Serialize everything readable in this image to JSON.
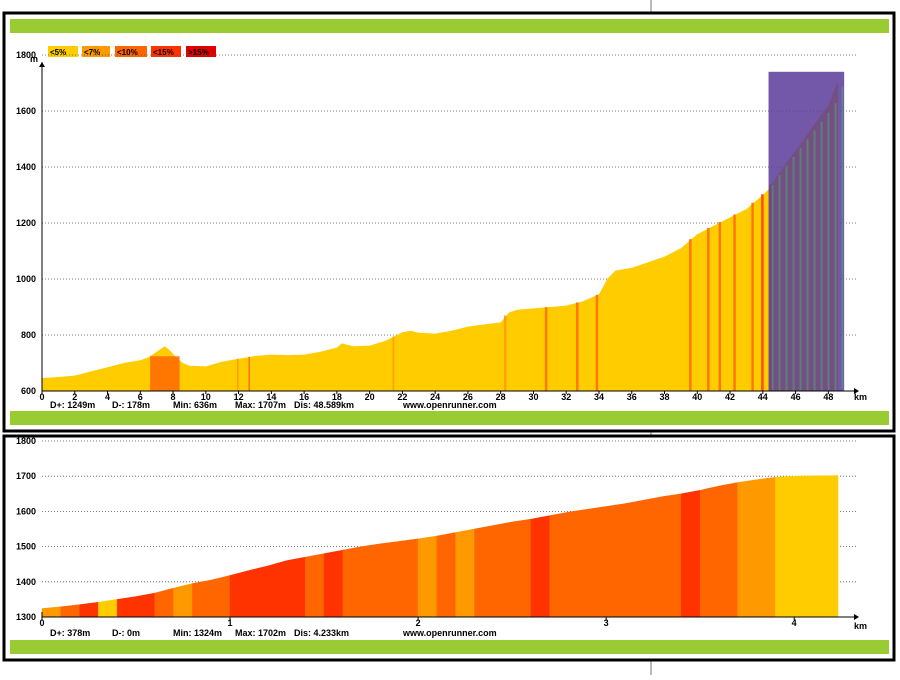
{
  "legend": [
    {
      "label": "<5%",
      "color": "#ffcc00"
    },
    {
      "label": "<7%",
      "color": "#ff9900"
    },
    {
      "label": "<10%",
      "color": "#ff6600"
    },
    {
      "label": "<15%",
      "color": "#ff3300"
    },
    {
      "label": ">15%",
      "color": "#e00000"
    }
  ],
  "colors": {
    "frame": "#000000",
    "green_bar": "#99cc33",
    "grid": "#555555",
    "selection": "#5a3a99",
    "below5": "#ffcc00",
    "below7": "#ff9900",
    "below10": "#ff6600",
    "below15": "#ff3300",
    "above15": "#e00000"
  },
  "top": {
    "y_unit": "m",
    "x_unit": "km",
    "stats": {
      "dplus": "D+: 1249m",
      "dminus": "D-: 178m",
      "min": "Min: 636m",
      "max": "Max: 1707m",
      "dist": "Dis: 48.589km",
      "site": "www.openrunner.com"
    },
    "selection": {
      "from_km": 44.35,
      "to_km": 48.6,
      "top_m": 1740
    }
  },
  "bottom": {
    "x_unit": "km",
    "stats": {
      "dplus": "D+: 378m",
      "dminus": "D-: 0m",
      "min": "Min: 1324m",
      "max": "Max: 1702m",
      "dist": "Dis: 4.233km",
      "site": "www.openrunner.com"
    }
  },
  "chart_data": [
    {
      "type": "area",
      "x": [
        0,
        1,
        2,
        3,
        4,
        5,
        6,
        6.5,
        7,
        7.5,
        7.8,
        8.2,
        8.6,
        9,
        10,
        11,
        12,
        13,
        14,
        15,
        16,
        17,
        18,
        18.3,
        19,
        20,
        21,
        22,
        22.5,
        23,
        24,
        25,
        26,
        27,
        28,
        28.5,
        29,
        30,
        31,
        32,
        33,
        34,
        34.5,
        35,
        36,
        37,
        38,
        39,
        40,
        41,
        42,
        43,
        44,
        44.35,
        45,
        46,
        47,
        48,
        48.59
      ],
      "y": [
        646,
        650,
        655,
        670,
        685,
        700,
        710,
        720,
        740,
        760,
        745,
        720,
        700,
        690,
        688,
        705,
        715,
        725,
        730,
        728,
        730,
        740,
        755,
        770,
        760,
        762,
        780,
        810,
        815,
        808,
        805,
        815,
        830,
        838,
        845,
        880,
        890,
        895,
        900,
        905,
        920,
        945,
        1000,
        1030,
        1040,
        1060,
        1080,
        1110,
        1160,
        1190,
        1220,
        1250,
        1300,
        1320,
        1380,
        1460,
        1540,
        1620,
        1707
      ],
      "xlim": [
        0,
        48.59
      ],
      "ylim": [
        600,
        1950
      ],
      "x_ticks": [
        0,
        2,
        4,
        6,
        8,
        10,
        12,
        14,
        16,
        18,
        20,
        22,
        24,
        26,
        28,
        30,
        32,
        34,
        36,
        38,
        40,
        42,
        44,
        46,
        48
      ],
      "y_ticks": [
        600,
        800,
        1000,
        1200,
        1400,
        1600,
        1800
      ],
      "ylabel": "m",
      "xlabel": "km",
      "slope_bands": [
        {
          "from": 6.6,
          "to": 8.4,
          "category": "<10%"
        },
        {
          "from": 11.9,
          "to": 12.0,
          "category": "<7%"
        },
        {
          "from": 12.6,
          "to": 12.7,
          "category": "<10%"
        },
        {
          "from": 21.4,
          "to": 21.5,
          "category": "<7%"
        },
        {
          "from": 28.2,
          "to": 28.35,
          "category": "<7%"
        },
        {
          "from": 30.7,
          "to": 30.85,
          "category": "<10%"
        },
        {
          "from": 32.6,
          "to": 32.75,
          "category": "<10%"
        },
        {
          "from": 33.8,
          "to": 33.95,
          "category": "<10%"
        },
        {
          "from": 39.5,
          "to": 39.65,
          "category": "<10%"
        },
        {
          "from": 40.6,
          "to": 40.75,
          "category": "<10%"
        },
        {
          "from": 41.3,
          "to": 41.45,
          "category": "<10%"
        },
        {
          "from": 42.2,
          "to": 42.35,
          "category": "<10%"
        },
        {
          "from": 43.3,
          "to": 43.45,
          "category": "<10%"
        },
        {
          "from": 43.9,
          "to": 44.05,
          "category": "<15%"
        },
        {
          "from": 44.4,
          "to": 44.55,
          "category": "<10%"
        }
      ],
      "grid": true
    },
    {
      "type": "area",
      "x": [
        0,
        0.1,
        0.2,
        0.3,
        0.4,
        0.5,
        0.6,
        0.7,
        0.8,
        0.9,
        1.0,
        1.1,
        1.2,
        1.3,
        1.4,
        1.5,
        1.6,
        1.7,
        1.8,
        1.9,
        2.0,
        2.1,
        2.2,
        2.3,
        2.4,
        2.5,
        2.6,
        2.7,
        2.8,
        2.9,
        3.0,
        3.1,
        3.2,
        3.3,
        3.4,
        3.5,
        3.6,
        3.7,
        3.8,
        3.9,
        4.0,
        4.1,
        4.233
      ],
      "y": [
        1324,
        1329,
        1335,
        1342,
        1350,
        1358,
        1368,
        1382,
        1395,
        1405,
        1418,
        1432,
        1445,
        1460,
        1470,
        1480,
        1490,
        1500,
        1508,
        1515,
        1522,
        1530,
        1540,
        1550,
        1560,
        1570,
        1578,
        1588,
        1598,
        1606,
        1614,
        1622,
        1632,
        1642,
        1650,
        1660,
        1672,
        1682,
        1690,
        1697,
        1700,
        1701,
        1702
      ],
      "xlim": [
        0,
        4.233
      ],
      "ylim": [
        1300,
        1800
      ],
      "x_ticks": [
        0,
        1,
        2,
        3,
        4
      ],
      "y_ticks": [
        1300,
        1400,
        1500,
        1600,
        1700,
        1800
      ],
      "xlabel": "km",
      "segments": [
        {
          "from": 0.0,
          "to": 0.1,
          "category": "<7%"
        },
        {
          "from": 0.1,
          "to": 0.2,
          "category": "<10%"
        },
        {
          "from": 0.2,
          "to": 0.3,
          "category": "<15%"
        },
        {
          "from": 0.3,
          "to": 0.4,
          "category": "<5%"
        },
        {
          "from": 0.4,
          "to": 0.6,
          "category": "<15%"
        },
        {
          "from": 0.6,
          "to": 0.7,
          "category": "<10%"
        },
        {
          "from": 0.7,
          "to": 0.8,
          "category": "<7%"
        },
        {
          "from": 0.8,
          "to": 1.0,
          "category": "<10%"
        },
        {
          "from": 1.0,
          "to": 1.4,
          "category": "<15%"
        },
        {
          "from": 1.4,
          "to": 1.5,
          "category": "<10%"
        },
        {
          "from": 1.5,
          "to": 1.6,
          "category": "<15%"
        },
        {
          "from": 1.6,
          "to": 2.0,
          "category": "<10%"
        },
        {
          "from": 2.0,
          "to": 2.1,
          "category": "<7%"
        },
        {
          "from": 2.1,
          "to": 2.2,
          "category": "<10%"
        },
        {
          "from": 2.2,
          "to": 2.3,
          "category": "<7%"
        },
        {
          "from": 2.3,
          "to": 2.6,
          "category": "<10%"
        },
        {
          "from": 2.6,
          "to": 2.7,
          "category": "<15%"
        },
        {
          "from": 2.7,
          "to": 3.4,
          "category": "<10%"
        },
        {
          "from": 3.4,
          "to": 3.5,
          "category": "<15%"
        },
        {
          "from": 3.5,
          "to": 3.7,
          "category": "<10%"
        },
        {
          "from": 3.7,
          "to": 3.9,
          "category": "<7%"
        },
        {
          "from": 3.9,
          "to": 4.233,
          "category": "<5%"
        }
      ],
      "grid": true
    }
  ]
}
